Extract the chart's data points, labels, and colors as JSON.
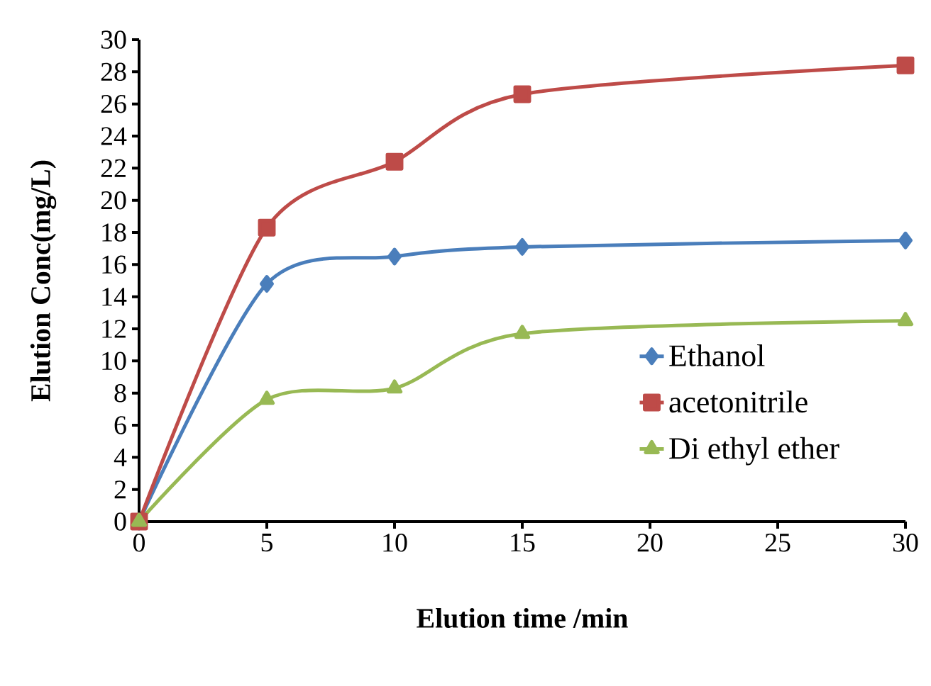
{
  "chart_data": {
    "type": "line",
    "xlabel": "Elution time /min",
    "ylabel": "Elution Conc(mg/L)",
    "x": [
      0,
      5,
      10,
      15,
      30
    ],
    "series": [
      {
        "name": "Ethanol",
        "color": "#4a7ebb",
        "marker": "diamond",
        "values": [
          0,
          14.8,
          16.5,
          17.1,
          17.5
        ]
      },
      {
        "name": "acetonitrile",
        "color": "#be4b48",
        "marker": "square",
        "values": [
          0,
          18.3,
          22.4,
          26.6,
          28.4
        ]
      },
      {
        "name": "Di ethyl ether",
        "color": "#98b954",
        "marker": "triangle",
        "values": [
          0,
          7.6,
          8.3,
          11.7,
          12.5
        ]
      }
    ],
    "xlim": [
      0,
      30
    ],
    "ylim": [
      0,
      30
    ],
    "xticks": [
      0,
      5,
      10,
      15,
      20,
      25,
      30
    ],
    "yticks": [
      0,
      2,
      4,
      6,
      8,
      10,
      12,
      14,
      16,
      18,
      20,
      22,
      24,
      26,
      28,
      30
    ],
    "grid": false,
    "legend": "right"
  }
}
